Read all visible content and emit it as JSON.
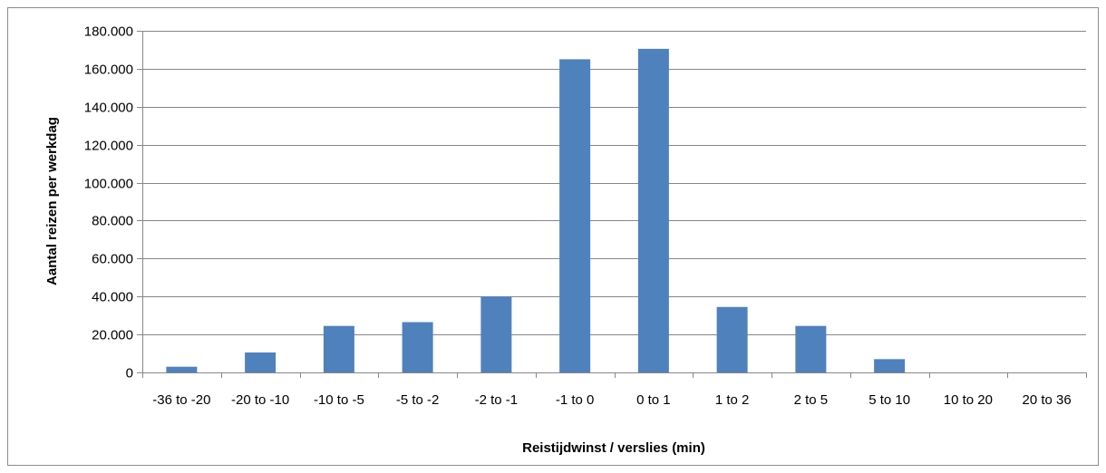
{
  "chart_data": {
    "type": "bar",
    "title": "",
    "xlabel": "Reistijdwinst / verslies (min)",
    "ylabel": "Aantal reizen per werkdag",
    "categories": [
      "-36 to -20",
      "-20 to -10",
      "-10 to -5",
      "-5 to -2",
      "-2 to -1",
      "-1 to 0",
      "0 to 1",
      "1 to 2",
      "2 to 5",
      "5 to 10",
      "10 to 20",
      "20 to 36"
    ],
    "values": [
      3000,
      10500,
      24500,
      26500,
      40000,
      165000,
      170500,
      34500,
      24500,
      7000,
      0,
      0
    ],
    "ylim": [
      0,
      180000
    ],
    "yticks": [
      0,
      20000,
      40000,
      60000,
      80000,
      100000,
      120000,
      140000,
      160000,
      180000
    ],
    "ytick_labels": [
      "0",
      "20.000",
      "40.000",
      "60.000",
      "80.000",
      "100.000",
      "120.000",
      "140.000",
      "160.000",
      "180.000"
    ],
    "grid": true,
    "legend": "none",
    "bar_color": "#4f81bd",
    "grid_color": "#878787"
  }
}
